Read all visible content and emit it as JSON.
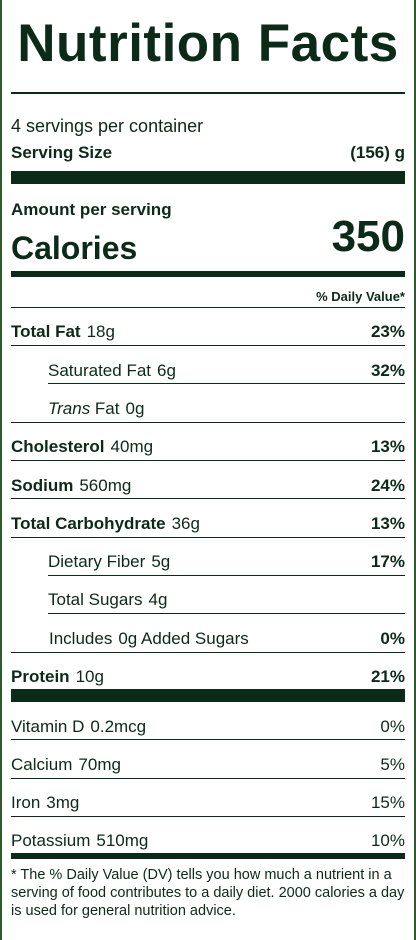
{
  "title": "Nutrition Facts",
  "servings_per_container": "4 servings per container",
  "serving_size_label": "Serving Size",
  "serving_size_value": "(156) g",
  "amount_per_serving": "Amount per serving",
  "calories_label": "Calories",
  "calories_value": "350",
  "dv_header": "% Daily Value*",
  "nutrients": [
    {
      "name": "Total Fat",
      "amount": "18g",
      "dv": "23%"
    },
    {
      "name": "Saturated Fat",
      "amount": "6g",
      "dv": "32%"
    },
    {
      "name_italic": "Trans",
      "name": " Fat",
      "amount": "0g",
      "dv": ""
    },
    {
      "name": "Cholesterol",
      "amount": "40mg",
      "dv": "13%"
    },
    {
      "name": "Sodium",
      "amount": "560mg",
      "dv": "24%"
    },
    {
      "name": "Total Carbohydrate",
      "amount": "36g",
      "dv": "13%"
    },
    {
      "name": "Dietary Fiber",
      "amount": "5g",
      "dv": "17%"
    },
    {
      "name": "Total Sugars",
      "amount": "4g",
      "dv": ""
    },
    {
      "name": "Includes",
      "amount": "0g Added Sugars",
      "dv": "0%"
    },
    {
      "name": "Protein",
      "amount": "10g",
      "dv": "21%"
    }
  ],
  "vitamins": [
    {
      "name": "Vitamin D",
      "amount": "0.2mcg",
      "dv": "0%"
    },
    {
      "name": "Calcium",
      "amount": "70mg",
      "dv": "5%"
    },
    {
      "name": "Iron",
      "amount": "3mg",
      "dv": "15%"
    },
    {
      "name": "Potassium",
      "amount": "510mg",
      "dv": "10%"
    }
  ],
  "footnote": "* The % Daily Value (DV) tells you how much a nutrient in a serving of food contributes to a daily diet. 2000 calories a day is used for general nutrition advice."
}
